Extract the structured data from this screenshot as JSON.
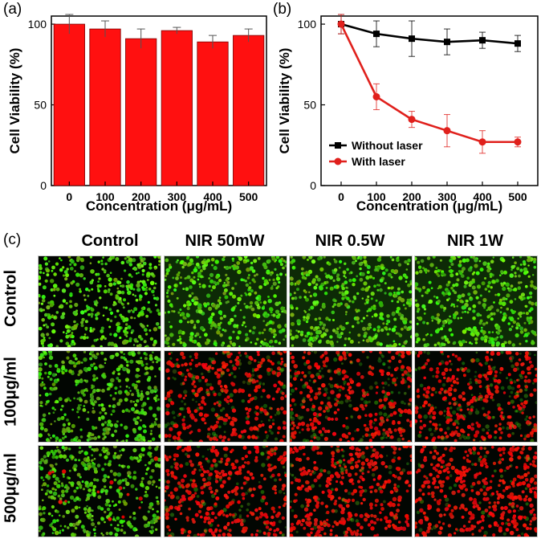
{
  "panels": {
    "a_label": "(a)",
    "b_label": "(b)",
    "c_label": "(c)"
  },
  "chart_data": [
    {
      "type": "bar",
      "categories": [
        "0",
        "100",
        "200",
        "300",
        "400",
        "500"
      ],
      "values": [
        100,
        97,
        91,
        96,
        89,
        93
      ],
      "errors": [
        6,
        5,
        6,
        2,
        4,
        4
      ],
      "title": "",
      "xlabel": "Concentration (μg/mL)",
      "ylabel": "Cell Viability (%)",
      "ylim": [
        0,
        105
      ],
      "yticks": [
        "0",
        "50",
        "100"
      ],
      "grid": false,
      "color": "#ff1010"
    },
    {
      "type": "line",
      "categories": [
        "0",
        "100",
        "200",
        "300",
        "400",
        "500"
      ],
      "series": [
        {
          "name": "Without laser",
          "values": [
            100,
            94,
            91,
            89,
            90,
            88
          ],
          "errors": [
            6,
            8,
            11,
            8,
            5,
            5
          ],
          "color": "#000000"
        },
        {
          "name": "With laser",
          "values": [
            100,
            55,
            41,
            34,
            27,
            27
          ],
          "errors": [
            6,
            8,
            5,
            10,
            7,
            3
          ],
          "color": "#e0201c"
        }
      ],
      "title": "",
      "xlabel": "Concentration (μg/mL)",
      "ylabel": "Cell Viability (%)",
      "ylim": [
        0,
        105
      ],
      "yticks": [
        "0",
        "50",
        "100"
      ],
      "grid": false,
      "legend": "bottom-left"
    }
  ],
  "micrograph_grid": {
    "columns": [
      "Control",
      "NIR 50mW",
      "NIR 0.5W",
      "NIR 1W"
    ],
    "rows": [
      "Control",
      "100μg/ml",
      "500μg/ml"
    ],
    "red_fraction": [
      [
        0.0,
        0.0,
        0.0,
        0.0
      ],
      [
        0.0,
        0.6,
        0.6,
        0.65
      ],
      [
        0.05,
        0.7,
        0.8,
        0.85
      ]
    ]
  }
}
